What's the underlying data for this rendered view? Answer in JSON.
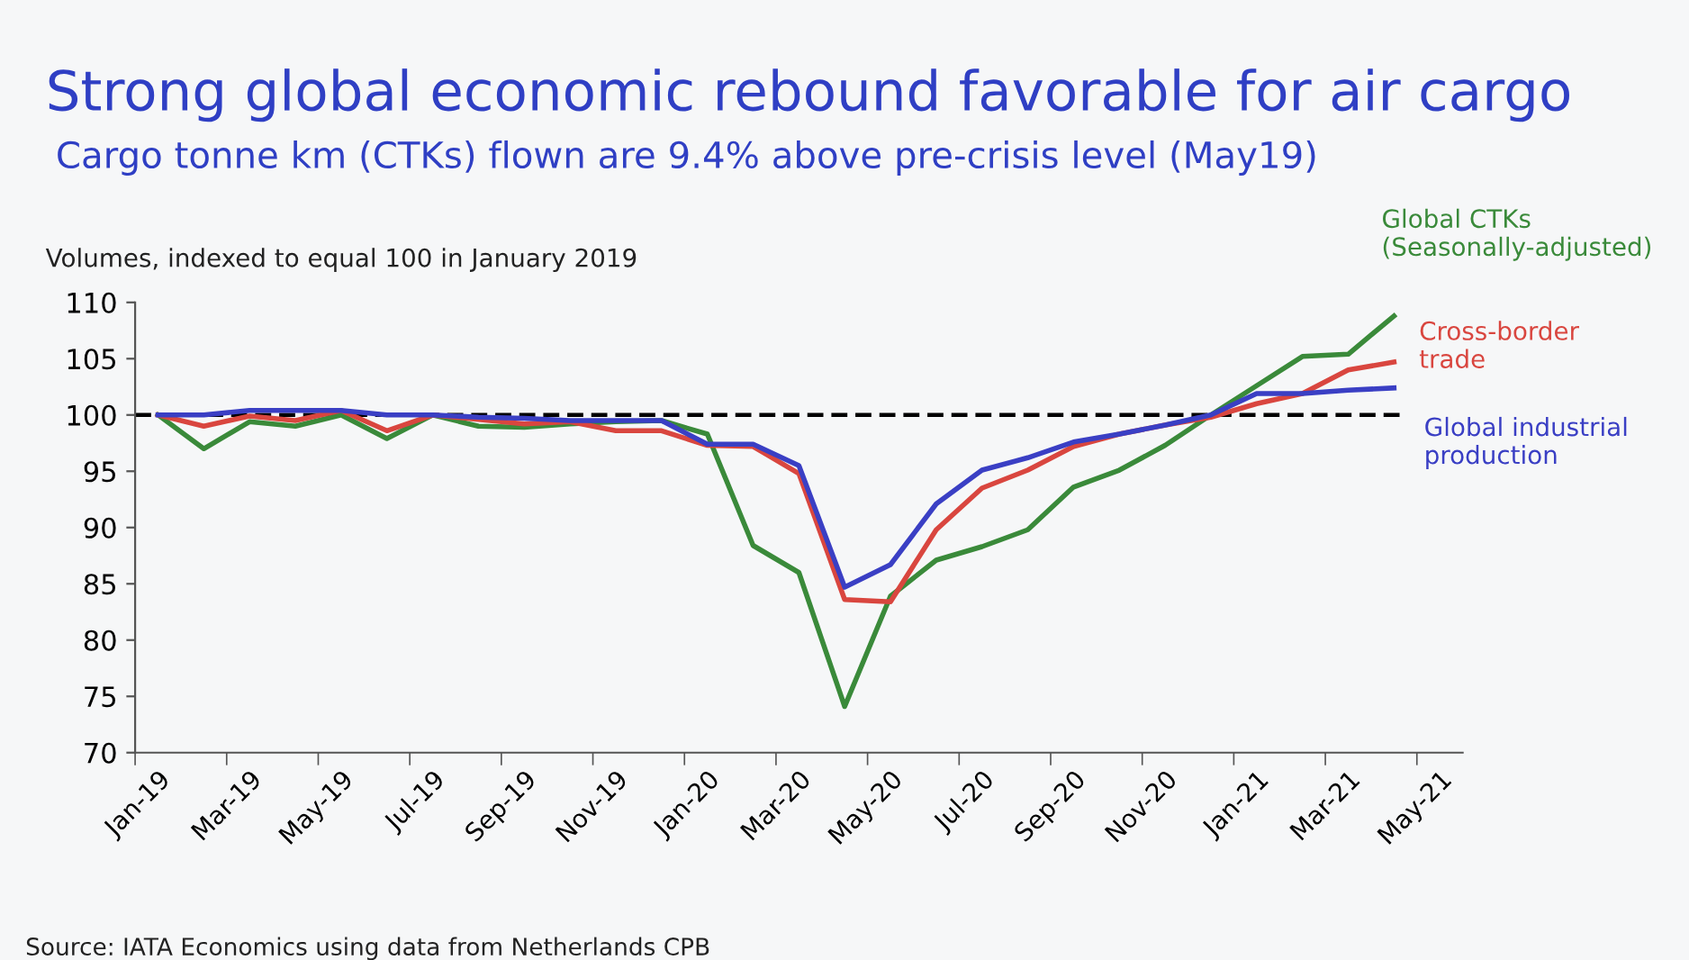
{
  "chart_data": {
    "type": "line",
    "title": "Strong global economic rebound favorable for air cargo",
    "subtitle": "Cargo tonne km (CTKs) flown are 9.4% above pre-crisis level (May19)",
    "ylabel": "Volumes, indexed to equal 100 in January 2019",
    "categories": [
      "Jan-19",
      null,
      "Mar-19",
      null,
      "May-19",
      null,
      "Jul-19",
      null,
      "Sep-19",
      null,
      "Nov-19",
      null,
      "Jan-20",
      null,
      "Mar-20",
      null,
      "May-20",
      null,
      "Jul-20",
      null,
      "Sep-20",
      null,
      "Nov-20",
      null,
      "Jan-21",
      null,
      "Mar-21",
      null,
      "May-21"
    ],
    "series": [
      {
        "name": "Global CTKs\n(Seasonally-adjusted)",
        "color": "#3a8a3a",
        "values": [
          100,
          97,
          99.4,
          99,
          100,
          97.9,
          100,
          99,
          98.9,
          99.2,
          99.4,
          99.5,
          98.3,
          88.4,
          86,
          74.1,
          83.9,
          87.1,
          88.3,
          89.8,
          93.6,
          95.1,
          97.3,
          100,
          102.6,
          105.2,
          105.4,
          108.8,
          null
        ]
      },
      {
        "name": "Cross-border\ntrade",
        "color": "#d9463f",
        "values": [
          100,
          99,
          99.9,
          99.5,
          100.4,
          98.6,
          100,
          99.6,
          99.2,
          99.4,
          98.6,
          98.6,
          97.3,
          97.2,
          94.8,
          83.6,
          83.4,
          89.8,
          93.5,
          95.1,
          97.2,
          98.3,
          99.1,
          99.8,
          101,
          101.9,
          104,
          104.7,
          null
        ]
      },
      {
        "name": "Global industrial\nproduction",
        "color": "#3a3fc4",
        "values": [
          100,
          100,
          100.4,
          100.4,
          100.4,
          100,
          100,
          99.8,
          99.7,
          99.5,
          99.5,
          99.5,
          97.4,
          97.4,
          95.5,
          84.7,
          86.7,
          92.1,
          95.1,
          96.2,
          97.6,
          98.3,
          99.1,
          100,
          101.9,
          101.9,
          102.2,
          102.4,
          null
        ]
      }
    ],
    "ylim": [
      70,
      110
    ],
    "yticks": [
      70,
      75,
      80,
      85,
      90,
      95,
      100,
      105,
      110
    ],
    "ref_lines": [
      {
        "axis": "y",
        "value": 100,
        "color": "#000000",
        "line_style": "dashed"
      }
    ],
    "annotations": [
      "Source: IATA Economics using data from Netherlands CPB"
    ],
    "grid": false,
    "legend": false,
    "line_style": "solid",
    "marker": "none"
  }
}
